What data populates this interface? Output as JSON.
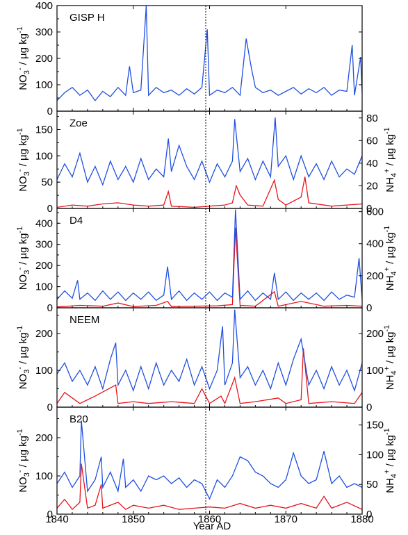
{
  "chart_data": [
    {
      "type": "line",
      "panel": "GISP H",
      "colors": {
        "no3": "#1f4fe0"
      },
      "x_range": [
        1840,
        1880
      ],
      "left_axis": {
        "label": "NO3- / µg kg-1",
        "ylim": [
          0,
          400
        ],
        "ticks": [
          0,
          100,
          200,
          300,
          400
        ]
      },
      "series": [
        {
          "axis": "left",
          "color": "#1f4fe0",
          "x": [
            1840,
            1841,
            1842,
            1843,
            1844,
            1845,
            1846,
            1847,
            1848,
            1849,
            1849.5,
            1850,
            1851,
            1851.7,
            1852,
            1853,
            1854,
            1855,
            1856,
            1857,
            1858,
            1859,
            1859.7,
            1860,
            1861,
            1862,
            1863,
            1864,
            1864.8,
            1865.5,
            1866,
            1867,
            1868,
            1869,
            1870,
            1871,
            1872,
            1873,
            1874,
            1875,
            1876,
            1877,
            1878,
            1878.7,
            1879,
            1879.8,
            1880
          ],
          "y": [
            40,
            70,
            90,
            60,
            80,
            40,
            75,
            55,
            90,
            60,
            170,
            70,
            80,
            400,
            60,
            90,
            70,
            80,
            60,
            85,
            65,
            90,
            310,
            60,
            80,
            70,
            90,
            60,
            275,
            160,
            90,
            70,
            80,
            60,
            75,
            90,
            65,
            85,
            70,
            90,
            60,
            80,
            75,
            250,
            60,
            205,
            70
          ]
        }
      ]
    },
    {
      "type": "line",
      "panel": "Zoe",
      "colors": {
        "no3": "#1f4fe0",
        "nh4": "#e8141b"
      },
      "x_range": [
        1840,
        1880
      ],
      "left_axis": {
        "label": "NO3- / µg kg-1",
        "ylim": [
          0,
          185
        ],
        "ticks": [
          0,
          50,
          100,
          150
        ]
      },
      "right_axis": {
        "label": "NH4+ / µg kg-1",
        "ylim": [
          0,
          86
        ],
        "ticks": [
          0,
          20,
          40,
          60,
          80
        ]
      },
      "series": [
        {
          "axis": "left",
          "color": "#1f4fe0",
          "x": [
            1840,
            1841,
            1842,
            1843,
            1844,
            1845,
            1846,
            1847,
            1848,
            1849,
            1850,
            1851,
            1852,
            1853,
            1854,
            1854.6,
            1855,
            1856,
            1857,
            1858,
            1859,
            1860,
            1861,
            1862,
            1863,
            1863.3,
            1864,
            1865,
            1866,
            1867,
            1868,
            1868.6,
            1869,
            1870,
            1871,
            1872,
            1873,
            1874,
            1875,
            1876,
            1877,
            1878,
            1879,
            1880
          ],
          "y": [
            55,
            85,
            60,
            105,
            50,
            80,
            45,
            90,
            55,
            80,
            50,
            95,
            55,
            75,
            60,
            133,
            70,
            120,
            80,
            55,
            90,
            50,
            85,
            60,
            90,
            170,
            70,
            95,
            55,
            90,
            60,
            173,
            80,
            100,
            55,
            100,
            60,
            85,
            55,
            90,
            60,
            75,
            65,
            100
          ]
        },
        {
          "axis": "right",
          "color": "#e8141b",
          "x": [
            1840,
            1842,
            1844,
            1846,
            1848,
            1850,
            1852,
            1854,
            1854.6,
            1855,
            1858,
            1860,
            1862,
            1863,
            1863.5,
            1864,
            1865,
            1867,
            1868.5,
            1869,
            1870,
            1872,
            1872.5,
            1873,
            1876,
            1878,
            1880
          ],
          "y": [
            1,
            3,
            2,
            4,
            5,
            3,
            2,
            3,
            15,
            2,
            1,
            2,
            3,
            5,
            20,
            12,
            3,
            2,
            25,
            8,
            3,
            10,
            28,
            5,
            2,
            3,
            4
          ]
        }
      ]
    },
    {
      "type": "line",
      "panel": "D4",
      "colors": {
        "no3": "#1f4fe0",
        "nh4": "#e8141b"
      },
      "x_range": [
        1840,
        1880
      ],
      "left_axis": {
        "label": "NO3- / µg kg-1",
        "ylim": [
          0,
          470
        ],
        "ticks": [
          0,
          100,
          200,
          300,
          400
        ]
      },
      "right_axis": {
        "label": "NH4+ / µg kg-1",
        "ylim": [
          0,
          620
        ],
        "ticks": [
          0,
          200,
          400,
          600
        ]
      },
      "series": [
        {
          "axis": "left",
          "color": "#1f4fe0",
          "x": [
            1840,
            1841,
            1842,
            1842.7,
            1843,
            1844,
            1845,
            1846,
            1847,
            1848,
            1849,
            1850,
            1851,
            1852,
            1853,
            1854,
            1854.5,
            1855,
            1856,
            1857,
            1858,
            1859,
            1860,
            1861,
            1862,
            1863,
            1863.4,
            1864,
            1865,
            1866,
            1867,
            1868,
            1868.5,
            1869,
            1870,
            1871,
            1872,
            1873,
            1874,
            1875,
            1876,
            1877,
            1878,
            1879,
            1879.6,
            1880
          ],
          "y": [
            40,
            80,
            45,
            130,
            40,
            70,
            35,
            80,
            40,
            75,
            35,
            70,
            40,
            75,
            35,
            60,
            195,
            40,
            80,
            35,
            70,
            40,
            75,
            35,
            70,
            50,
            465,
            40,
            80,
            35,
            70,
            40,
            165,
            40,
            75,
            35,
            70,
            40,
            70,
            35,
            75,
            40,
            60,
            50,
            235,
            40
          ]
        },
        {
          "axis": "right",
          "color": "#e8141b",
          "x": [
            1840,
            1843,
            1846,
            1848,
            1850,
            1853,
            1854.5,
            1855,
            1858,
            1861,
            1863,
            1863.4,
            1864,
            1866,
            1868.5,
            1869,
            1872,
            1875,
            1878,
            1880
          ],
          "y": [
            5,
            15,
            10,
            30,
            8,
            15,
            40,
            8,
            10,
            12,
            20,
            500,
            15,
            10,
            100,
            10,
            40,
            10,
            15,
            10
          ]
        }
      ]
    },
    {
      "type": "line",
      "panel": "NEEM",
      "colors": {
        "no3": "#1f4fe0",
        "nh4": "#e8141b"
      },
      "x_range": [
        1840,
        1880
      ],
      "left_axis": {
        "label": "NO3- / µg kg-1",
        "ylim": [
          0,
          270
        ],
        "ticks": [
          0,
          100,
          200
        ]
      },
      "right_axis": {
        "label": "NH4+ / µg kg-1",
        "ylim": [
          0,
          270
        ],
        "ticks": [
          0,
          100,
          200
        ]
      },
      "series": [
        {
          "axis": "left",
          "color": "#1f4fe0",
          "x": [
            1840,
            1841,
            1842,
            1843,
            1844,
            1845,
            1846,
            1847,
            1847.7,
            1848,
            1849,
            1850,
            1851,
            1852,
            1853,
            1854,
            1855,
            1856,
            1857,
            1858,
            1859,
            1860,
            1861,
            1861.7,
            1862,
            1863,
            1863.3,
            1864,
            1865,
            1866,
            1867,
            1868,
            1869,
            1870,
            1871,
            1872,
            1873,
            1874,
            1875,
            1876,
            1877,
            1878,
            1879,
            1880
          ],
          "y": [
            90,
            120,
            70,
            100,
            60,
            110,
            50,
            130,
            175,
            60,
            100,
            45,
            110,
            50,
            120,
            60,
            100,
            70,
            130,
            60,
            110,
            50,
            100,
            220,
            60,
            120,
            265,
            80,
            110,
            60,
            100,
            50,
            120,
            60,
            130,
            185,
            60,
            100,
            50,
            110,
            60,
            100,
            45,
            120
          ]
        },
        {
          "axis": "right",
          "color": "#e8141b",
          "x": [
            1840,
            1841,
            1843,
            1845,
            1847.7,
            1848,
            1850,
            1852,
            1855,
            1858,
            1859,
            1860,
            1861.5,
            1862,
            1863.3,
            1864,
            1866,
            1869,
            1870,
            1872,
            1872.3,
            1873,
            1876,
            1879,
            1880
          ],
          "y": [
            10,
            40,
            10,
            30,
            60,
            10,
            15,
            10,
            15,
            10,
            50,
            10,
            30,
            10,
            80,
            10,
            15,
            25,
            10,
            20,
            160,
            10,
            15,
            10,
            40
          ]
        }
      ]
    },
    {
      "type": "line",
      "panel": "B20",
      "colors": {
        "no3": "#1f4fe0",
        "nh4": "#e8141b"
      },
      "x_range": [
        1840,
        1880
      ],
      "left_axis": {
        "label": "NO3- / µg kg-1",
        "ylim": [
          0,
          280
        ],
        "ticks": [
          0,
          100,
          200
        ]
      },
      "right_axis": {
        "label": "NH4+ / µg kg-1",
        "ylim": [
          0,
          180
        ],
        "ticks": [
          0,
          50,
          100,
          150
        ]
      },
      "series": [
        {
          "axis": "left",
          "color": "#1f4fe0",
          "x": [
            1840,
            1841,
            1842,
            1843,
            1843.2,
            1844,
            1845,
            1845.8,
            1846,
            1847,
            1848,
            1848.7,
            1849,
            1850,
            1851,
            1852,
            1853,
            1854,
            1855,
            1856,
            1857,
            1858,
            1859,
            1860,
            1861,
            1862,
            1863,
            1864,
            1865,
            1866,
            1867,
            1868,
            1869,
            1870,
            1871,
            1872,
            1873,
            1874,
            1875,
            1876,
            1877,
            1878,
            1879,
            1880
          ],
          "y": [
            80,
            110,
            70,
            100,
            245,
            60,
            90,
            150,
            70,
            110,
            60,
            145,
            70,
            90,
            60,
            100,
            90,
            100,
            80,
            95,
            70,
            90,
            80,
            40,
            90,
            70,
            100,
            150,
            140,
            110,
            100,
            80,
            70,
            90,
            160,
            100,
            80,
            90,
            165,
            80,
            100,
            70,
            80,
            70
          ]
        },
        {
          "axis": "right",
          "color": "#e8141b",
          "x": [
            1840,
            1841,
            1842,
            1843,
            1843.2,
            1844,
            1845,
            1845.8,
            1846,
            1848,
            1849,
            1850,
            1852,
            1854,
            1856,
            1858,
            1860,
            1862,
            1864,
            1866,
            1868,
            1870,
            1872,
            1874,
            1875,
            1876,
            1878,
            1880
          ],
          "y": [
            10,
            25,
            8,
            20,
            85,
            10,
            15,
            50,
            10,
            20,
            8,
            15,
            10,
            15,
            8,
            10,
            12,
            10,
            18,
            10,
            15,
            10,
            18,
            10,
            30,
            10,
            20,
            8
          ]
        }
      ]
    }
  ],
  "panels": [
    {
      "label": "GISP H",
      "left_ticks": [
        "0",
        "100",
        "200",
        "300",
        "400"
      ],
      "right_ticks": []
    },
    {
      "label": "Zoe",
      "left_ticks": [
        "0",
        "50",
        "100",
        "150"
      ],
      "right_ticks": [
        "0",
        "20",
        "40",
        "60",
        "80"
      ]
    },
    {
      "label": "D4",
      "left_ticks": [
        "0",
        "100",
        "200",
        "300",
        "400"
      ],
      "right_ticks": [
        "0",
        "200",
        "400",
        "600"
      ]
    },
    {
      "label": "NEEM",
      "left_ticks": [
        "0",
        "100",
        "200"
      ],
      "right_ticks": [
        "0",
        "100",
        "200"
      ]
    },
    {
      "label": "B20",
      "left_ticks": [
        "0",
        "100",
        "200"
      ],
      "right_ticks": [
        "0",
        "50",
        "100",
        "150"
      ]
    }
  ],
  "x_axis": {
    "label": "Year AD",
    "ticks": [
      "1840",
      "1850",
      "1860",
      "1870",
      "1880"
    ],
    "range": [
      1840,
      1880
    ]
  },
  "marker_year": 1859.5,
  "axis_text": {
    "no3_left": "NO",
    "no3_sub": "3",
    "no3_sup": "-",
    "no3_rest": " / µg kg",
    "no3_exp": "-1",
    "nh4_left": "NH",
    "nh4_sub": "4",
    "nh4_sup": "+",
    "nh4_rest": " / µg kg",
    "nh4_exp": "-1"
  }
}
